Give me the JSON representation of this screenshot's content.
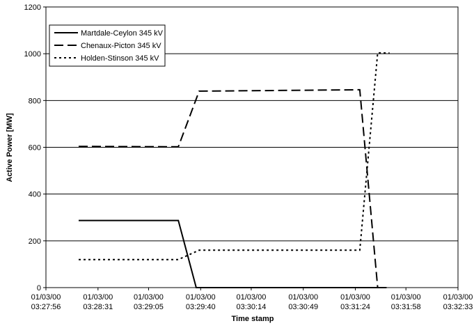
{
  "chart_data": {
    "type": "line",
    "title": "",
    "xlabel": "Time stamp",
    "ylabel": "Active Power [MW]",
    "ylim": [
      0,
      1200
    ],
    "y_ticks": [
      "0",
      "200",
      "400",
      "600",
      "800",
      "1000",
      "1200"
    ],
    "x_ticks": [
      {
        "date": "01/03/00",
        "time": "03:27:56"
      },
      {
        "date": "01/03/00",
        "time": "03:28:31"
      },
      {
        "date": "01/03/00",
        "time": "03:29:05"
      },
      {
        "date": "01/03/00",
        "time": "03:29:40"
      },
      {
        "date": "01/03/00",
        "time": "03:30:14"
      },
      {
        "date": "01/03/00",
        "time": "03:30:49"
      },
      {
        "date": "01/03/00",
        "time": "03:31:24"
      },
      {
        "date": "01/03/00",
        "time": "03:31:58"
      },
      {
        "date": "01/03/00",
        "time": "03:32:33"
      }
    ],
    "xlim": [
      "03:27:56",
      "03:32:33"
    ],
    "grid": "horizontal",
    "legend_position": "top-left",
    "series": [
      {
        "name": "Martdale-Ceylon 345 kV",
        "style": "solid",
        "color": "#000000",
        "points": [
          [
            "03:28:18",
            287
          ],
          [
            "03:29:25",
            287
          ],
          [
            "03:29:37",
            0
          ],
          [
            "03:31:45",
            0
          ]
        ]
      },
      {
        "name": "Chenaux-Picton 345 kV",
        "style": "dashed",
        "color": "#000000",
        "points": [
          [
            "03:28:18",
            604
          ],
          [
            "03:29:25",
            602
          ],
          [
            "03:29:39",
            840
          ],
          [
            "03:31:27",
            846
          ],
          [
            "03:31:39",
            0
          ]
        ]
      },
      {
        "name": "Holden-Stinson 345 kV",
        "style": "dotted",
        "color": "#000000",
        "points": [
          [
            "03:28:18",
            120
          ],
          [
            "03:29:25",
            120
          ],
          [
            "03:29:39",
            160
          ],
          [
            "03:31:27",
            160
          ],
          [
            "03:31:39",
            1004
          ],
          [
            "03:31:47",
            1003
          ]
        ]
      }
    ]
  }
}
